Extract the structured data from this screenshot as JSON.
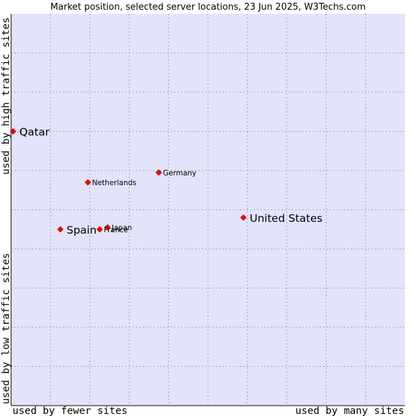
{
  "chart_data": {
    "type": "scatter",
    "title": "Market position, selected server locations, 23 Jun 2025, W3Techs.com",
    "x_axis": {
      "low_label": "used by fewer sites",
      "high_label": "used by many sites",
      "range": [
        0,
        10
      ]
    },
    "y_axis": {
      "low_label": "used by low traffic sites",
      "high_label": "used by high traffic sites",
      "range": [
        0,
        10
      ]
    },
    "grid": true,
    "background_color": "#e3e3f9",
    "grid_color": "#a0a0b8",
    "point_color": "#ff0000",
    "points": [
      {
        "name": "Qatar",
        "x": 0.05,
        "y": 7.0,
        "emphasis": "large"
      },
      {
        "name": "United States",
        "x": 5.9,
        "y": 4.8,
        "emphasis": "large"
      },
      {
        "name": "Spain",
        "x": 1.25,
        "y": 4.5,
        "emphasis": "large"
      },
      {
        "name": "Netherlands",
        "x": 1.95,
        "y": 5.7,
        "emphasis": "small"
      },
      {
        "name": "Germany",
        "x": 3.75,
        "y": 5.95,
        "emphasis": "small"
      },
      {
        "name": "Japan",
        "x": 2.45,
        "y": 4.55,
        "emphasis": "small"
      },
      {
        "name": "France",
        "x": 2.25,
        "y": 4.5,
        "emphasis": "small"
      }
    ]
  }
}
